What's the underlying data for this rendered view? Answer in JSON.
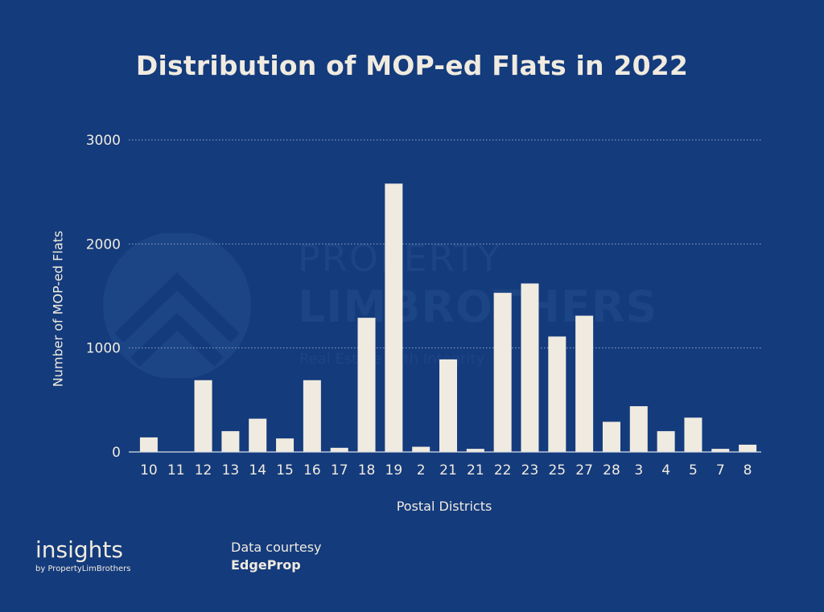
{
  "watermark": {
    "line1": "PROPERTY",
    "line2": "LIMBROTHERS",
    "line3": "Real Estate With Integrity"
  },
  "brand": {
    "name": "insights",
    "sub": "by PropertyLimBrothers"
  },
  "credit": {
    "label": "Data courtesy",
    "source": "EdgeProp"
  },
  "colors": {
    "background": "#143b7c",
    "bar": "#f0ebe0",
    "text": "#f0ebe0"
  },
  "chart_data": {
    "type": "bar",
    "title": "Distribution of MOP-ed Flats in 2022",
    "xlabel": "Postal Districts",
    "ylabel": "Number of MOP-ed Flats",
    "categories": [
      "10",
      "11",
      "12",
      "13",
      "14",
      "15",
      "16",
      "17",
      "18",
      "19",
      "2",
      "21",
      "21",
      "22",
      "23",
      "25",
      "27",
      "28",
      "3",
      "4",
      "5",
      "7",
      "8"
    ],
    "values": [
      140,
      0,
      690,
      200,
      320,
      130,
      690,
      40,
      1290,
      2580,
      50,
      890,
      30,
      1530,
      1620,
      1110,
      1310,
      290,
      440,
      200,
      330,
      30,
      70
    ],
    "ylim": [
      0,
      3000
    ],
    "yticks": [
      0,
      1000,
      2000,
      3000
    ],
    "grid": true,
    "legend": "none"
  }
}
